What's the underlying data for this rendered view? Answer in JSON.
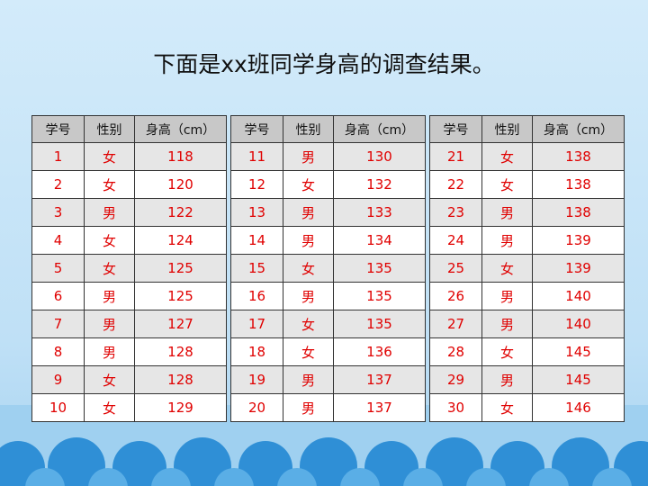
{
  "title": "下面是xx班同学身高的调查结果。",
  "tables": [
    {
      "header": [
        "学号",
        "性别",
        "身高（cm）"
      ],
      "rows": [
        [
          1,
          "女",
          118
        ],
        [
          2,
          "女",
          120
        ],
        [
          3,
          "男",
          122
        ],
        [
          4,
          "女",
          124
        ],
        [
          5,
          "女",
          125
        ],
        [
          6,
          "男",
          125
        ],
        [
          7,
          "男",
          127
        ],
        [
          8,
          "男",
          128
        ],
        [
          9,
          "女",
          128
        ],
        [
          10,
          "女",
          129
        ]
      ]
    },
    {
      "header": [
        "学号",
        "性别",
        "身高（cm）"
      ],
      "rows": [
        [
          11,
          "男",
          130
        ],
        [
          12,
          "女",
          132
        ],
        [
          13,
          "男",
          133
        ],
        [
          14,
          "男",
          134
        ],
        [
          15,
          "女",
          135
        ],
        [
          16,
          "男",
          135
        ],
        [
          17,
          "女",
          135
        ],
        [
          18,
          "女",
          136
        ],
        [
          19,
          "男",
          137
        ],
        [
          20,
          "男",
          137
        ]
      ]
    },
    {
      "header": [
        "学号",
        "性别",
        "身高（cm）"
      ],
      "rows": [
        [
          21,
          "女",
          138
        ],
        [
          22,
          "女",
          138
        ],
        [
          23,
          "男",
          138
        ],
        [
          24,
          "男",
          139
        ],
        [
          25,
          "女",
          139
        ],
        [
          26,
          "男",
          140
        ],
        [
          27,
          "男",
          140
        ],
        [
          28,
          "女",
          145
        ],
        [
          29,
          "男",
          145
        ],
        [
          30,
          "女",
          146
        ]
      ]
    }
  ]
}
